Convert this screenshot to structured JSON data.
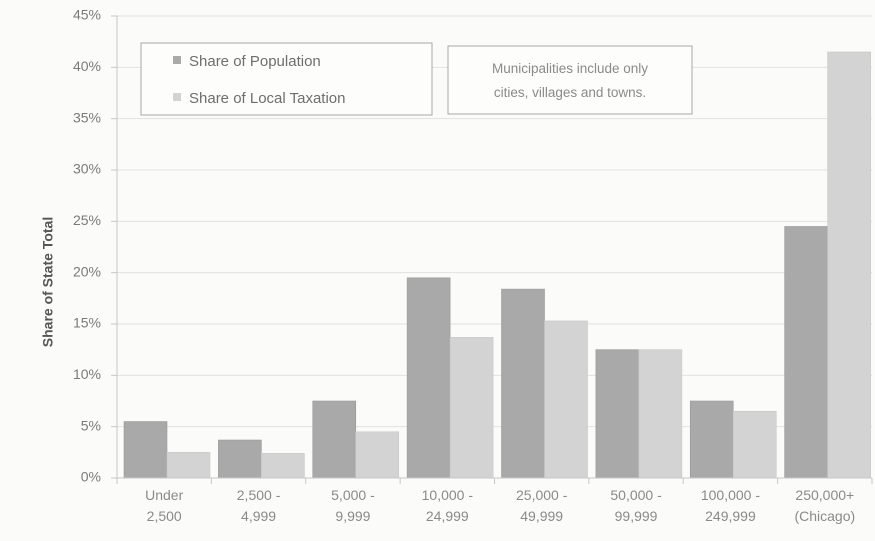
{
  "chart_data": {
    "type": "bar",
    "ylabel": "Share of State Total",
    "xlabel": "",
    "ylim": [
      0,
      45
    ],
    "yticks": [
      0,
      5,
      10,
      15,
      20,
      25,
      30,
      35,
      40,
      45
    ],
    "ytick_labels": [
      "0%",
      "5%",
      "10%",
      "15%",
      "20%",
      "25%",
      "30%",
      "35%",
      "40%",
      "45%"
    ],
    "grid": true,
    "categories": [
      [
        "Under",
        "2,500"
      ],
      [
        "2,500 -",
        "4,999"
      ],
      [
        "5,000 -",
        "9,999"
      ],
      [
        "10,000 -",
        "24,999"
      ],
      [
        "25,000 -",
        "49,999"
      ],
      [
        "50,000 -",
        "99,999"
      ],
      [
        "100,000 -",
        "249,999"
      ],
      [
        "250,000+",
        "(Chicago)"
      ]
    ],
    "series": [
      {
        "name": "Share of Population",
        "color": "#a9a9a9",
        "values": [
          5.5,
          3.7,
          7.5,
          19.5,
          18.4,
          12.5,
          7.5,
          24.5
        ]
      },
      {
        "name": "Share of Local Taxation",
        "color": "#d3d3d3",
        "values": [
          2.5,
          2.4,
          4.5,
          13.7,
          15.3,
          12.5,
          6.5,
          41.5
        ]
      }
    ],
    "legend": {
      "placement": "top-left"
    },
    "annotation": [
      "Municipalities include only",
      "cities, villages and towns."
    ]
  }
}
